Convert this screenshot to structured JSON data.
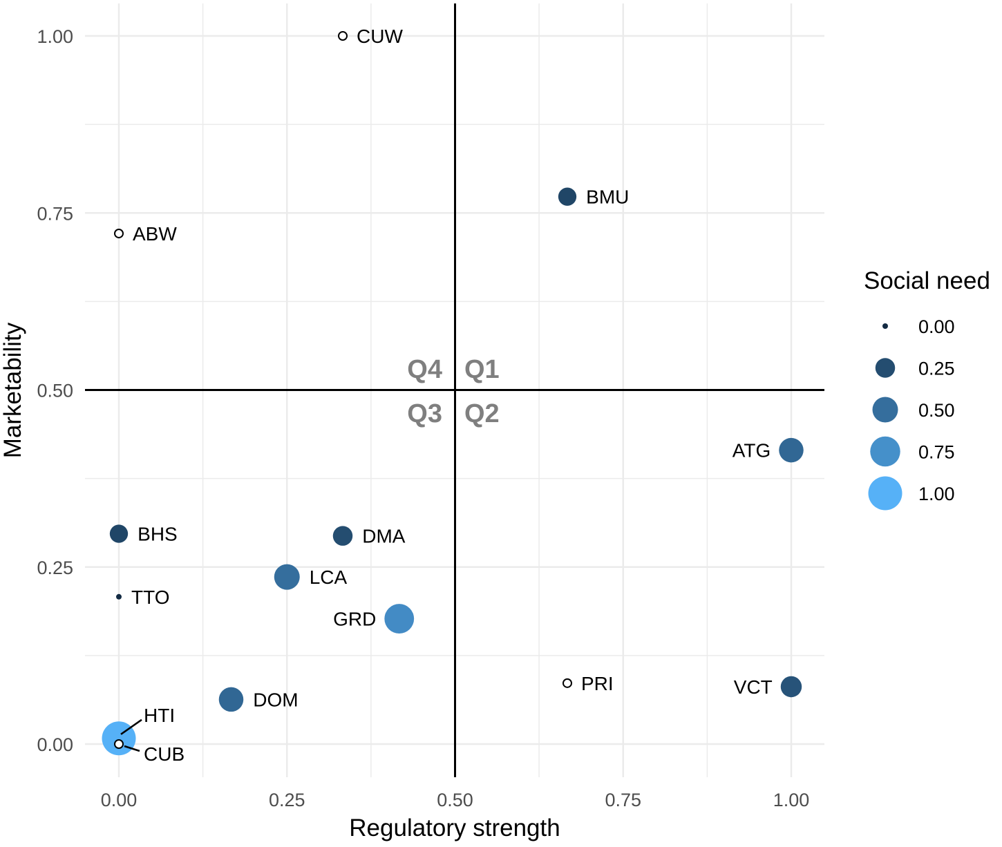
{
  "chart_data": {
    "type": "scatter",
    "title": "",
    "xlabel": "Regulatory strength",
    "ylabel": "Marketability",
    "xlim": [
      -0.1,
      1.1
    ],
    "ylim": [
      -0.05,
      1.05
    ],
    "xticks": [
      "0.00",
      "0.25",
      "0.50",
      "0.75",
      "1.00"
    ],
    "yticks": [
      "0.00",
      "0.25",
      "0.50",
      "0.75",
      "1.00"
    ],
    "grid": true,
    "reference_lines": {
      "x": 0.5,
      "y": 0.5
    },
    "quadrant_labels": [
      "Q4",
      "Q1",
      "Q3",
      "Q2"
    ],
    "legend": {
      "title": "Social need",
      "placement": "right",
      "entries": [
        "0.00",
        "0.25",
        "0.50",
        "0.75",
        "1.00"
      ],
      "values": [
        0,
        0.25,
        0.5,
        0.75,
        1.0
      ]
    },
    "colors": {
      "low": "#132B43",
      "high": "#56B1F7",
      "na_fill": "#ffffff"
    },
    "points": [
      {
        "label": "CUW",
        "x": 0.333,
        "y": 1.0,
        "social_need": null
      },
      {
        "label": "BMU",
        "x": 0.667,
        "y": 0.773,
        "social_need": 0.2
      },
      {
        "label": "ABW",
        "x": 0.0,
        "y": 0.721,
        "social_need": null
      },
      {
        "label": "ATG",
        "x": 1.0,
        "y": 0.415,
        "social_need": 0.45
      },
      {
        "label": "BHS",
        "x": 0.0,
        "y": 0.297,
        "social_need": 0.2
      },
      {
        "label": "DMA",
        "x": 0.333,
        "y": 0.294,
        "social_need": 0.25
      },
      {
        "label": "LCA",
        "x": 0.25,
        "y": 0.236,
        "social_need": 0.5
      },
      {
        "label": "TTO",
        "x": 0.0,
        "y": 0.208,
        "social_need": 0.0
      },
      {
        "label": "GRD",
        "x": 0.417,
        "y": 0.177,
        "social_need": 0.72
      },
      {
        "label": "PRI",
        "x": 0.667,
        "y": 0.086,
        "social_need": null
      },
      {
        "label": "VCT",
        "x": 1.0,
        "y": 0.081,
        "social_need": 0.3
      },
      {
        "label": "DOM",
        "x": 0.167,
        "y": 0.063,
        "social_need": 0.45
      },
      {
        "label": "HTI",
        "x": 0.0,
        "y": 0.008,
        "social_need": 1.0
      },
      {
        "label": "CUB",
        "x": 0.0,
        "y": 0.0,
        "social_need": null
      }
    ]
  }
}
